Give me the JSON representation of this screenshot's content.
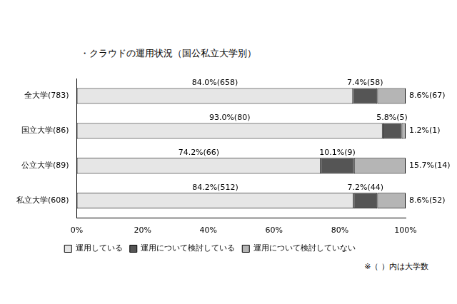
{
  "chart_data": {
    "type": "bar",
    "title": "・クラウドの運用状況（国公私立大学別）",
    "annotations": [
      "※（ ）内は大学数"
    ],
    "orientation": "horizontal",
    "stacked": true,
    "data_labels": true,
    "grid": false,
    "legend": "bottom",
    "categories": [
      "全大学(783)",
      "国立大学(86)",
      "公立大学(89)",
      "私立大学(608)"
    ],
    "series": [
      {
        "name": "運用している",
        "color": "#e6e6e6",
        "values": [
          84.0,
          93.0,
          74.2,
          84.2
        ],
        "value_labels": [
          "84.0%(658)",
          "93.0%(80)",
          "74.2%(66)",
          "84.2%(512)"
        ]
      },
      {
        "name": "運用について検討している",
        "color": "#555555",
        "values": [
          7.4,
          5.8,
          10.1,
          7.2
        ],
        "value_labels": [
          "7.4%(58)",
          "5.8%(5)",
          "10.1%(9)",
          "7.2%(44)"
        ]
      },
      {
        "name": "運用について検討していない",
        "color": "#b5b5b5",
        "values": [
          8.6,
          1.2,
          15.7,
          8.6
        ],
        "value_labels": [
          "8.6%(67)",
          "1.2%(1)",
          "15.7%(14)",
          "8.6%(52)"
        ]
      }
    ],
    "xlim": [
      0,
      100
    ],
    "xticks": [
      {
        "value": 0,
        "label": "0%"
      },
      {
        "value": 20,
        "label": "20%"
      },
      {
        "value": 40,
        "label": "40%"
      },
      {
        "value": 60,
        "label": "60%"
      },
      {
        "value": 80,
        "label": "80%"
      },
      {
        "value": 100,
        "label": "100%"
      }
    ]
  }
}
